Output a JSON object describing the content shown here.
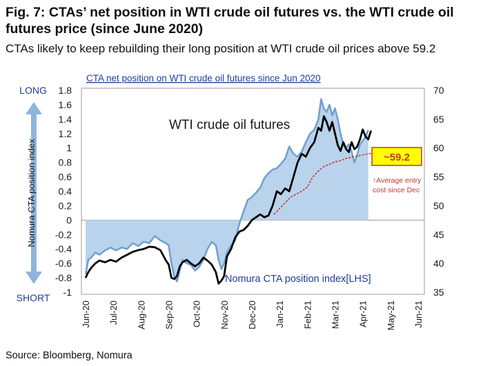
{
  "figure": {
    "title": "Fig. 7: CTAs’ net position in WTI crude oil futures vs. the WTI crude oil futures price (since June 2020)",
    "subtitle": "CTAs likely to keep rebuilding their long position at WTI crude oil prices above 59.2",
    "source": "Source: Bloomberg, Nomura"
  },
  "colors": {
    "cta_fill": "#b9d3ec",
    "cta_line": "#6f9fd0",
    "wti_line": "#000000",
    "avg_entry_line": "#c0392b",
    "arrow": "#8fb4dc",
    "callout_fill": "#ffff00",
    "callout_border": "#c0392b",
    "chart_title_color": "#1f3d99"
  },
  "chart_data": {
    "type": "line",
    "title": "CTA net position on WTI crude oil futures since Jun 2020",
    "left_axis": {
      "label": "Nomura CTA position index",
      "top_label": "LONG",
      "bottom_label": "SHORT",
      "ylim": [
        -1,
        1.8
      ],
      "ticks": [
        1.8,
        1.6,
        1.4,
        1.2,
        1,
        0.8,
        0.6,
        0.4,
        0.2,
        0,
        -0.2,
        -0.4,
        -0.6,
        -0.8,
        -1
      ]
    },
    "right_axis": {
      "ylim": [
        35,
        70
      ],
      "ticks": [
        70,
        65,
        60,
        55,
        50,
        45,
        40,
        35
      ]
    },
    "x_axis": {
      "categories": [
        "Jun-20",
        "Jul-20",
        "Aug-20",
        "Sep-20",
        "Oct-20",
        "Nov-20",
        "Dec-20",
        "Jan-21",
        "Feb-21",
        "Mar-21",
        "Apr-21",
        "May-21",
        "Jun-21"
      ],
      "range": [
        0,
        12
      ]
    },
    "annotations": {
      "wti_label": "WTI crude oil futures",
      "cta_label": "Nomura CTA position index[LHS]",
      "callout": "~59.2",
      "avg_entry_line1": "↑Average entry",
      "avg_entry_line2": "cost since Dec"
    },
    "series": [
      {
        "name": "Nomura CTA position index[LHS]",
        "axis": "left",
        "style": "area",
        "points": [
          [
            0.0,
            -0.75
          ],
          [
            0.1,
            -0.55
          ],
          [
            0.2,
            -0.52
          ],
          [
            0.35,
            -0.45
          ],
          [
            0.5,
            -0.48
          ],
          [
            0.7,
            -0.42
          ],
          [
            0.9,
            -0.38
          ],
          [
            1.1,
            -0.42
          ],
          [
            1.3,
            -0.38
          ],
          [
            1.5,
            -0.4
          ],
          [
            1.7,
            -0.32
          ],
          [
            1.9,
            -0.36
          ],
          [
            2.1,
            -0.3
          ],
          [
            2.3,
            -0.32
          ],
          [
            2.5,
            -0.22
          ],
          [
            2.7,
            -0.28
          ],
          [
            2.9,
            -0.32
          ],
          [
            3.0,
            -0.35
          ],
          [
            3.1,
            -0.6
          ],
          [
            3.2,
            -0.78
          ],
          [
            3.3,
            -0.85
          ],
          [
            3.4,
            -0.7
          ],
          [
            3.5,
            -0.55
          ],
          [
            3.65,
            -0.6
          ],
          [
            3.8,
            -0.62
          ],
          [
            3.95,
            -0.7
          ],
          [
            4.1,
            -0.65
          ],
          [
            4.25,
            -0.55
          ],
          [
            4.4,
            -0.4
          ],
          [
            4.55,
            -0.3
          ],
          [
            4.7,
            -0.35
          ],
          [
            4.8,
            -0.55
          ],
          [
            4.9,
            -0.68
          ],
          [
            5.0,
            -0.6
          ],
          [
            5.1,
            -0.45
          ],
          [
            5.25,
            -0.35
          ],
          [
            5.4,
            -0.28
          ],
          [
            5.55,
            -0.05
          ],
          [
            5.7,
            0.12
          ],
          [
            5.85,
            0.28
          ],
          [
            6.0,
            0.32
          ],
          [
            6.15,
            0.38
          ],
          [
            6.3,
            0.45
          ],
          [
            6.45,
            0.58
          ],
          [
            6.6,
            0.65
          ],
          [
            6.75,
            0.7
          ],
          [
            6.9,
            0.72
          ],
          [
            7.05,
            0.78
          ],
          [
            7.2,
            0.85
          ],
          [
            7.35,
            1.02
          ],
          [
            7.5,
            0.92
          ],
          [
            7.65,
            0.88
          ],
          [
            7.8,
            0.95
          ],
          [
            7.95,
            1.08
          ],
          [
            8.1,
            1.2
          ],
          [
            8.25,
            1.25
          ],
          [
            8.4,
            1.4
          ],
          [
            8.5,
            1.68
          ],
          [
            8.6,
            1.55
          ],
          [
            8.7,
            1.5
          ],
          [
            8.8,
            1.6
          ],
          [
            8.9,
            1.45
          ],
          [
            9.0,
            1.55
          ],
          [
            9.1,
            1.4
          ],
          [
            9.2,
            1.2
          ],
          [
            9.3,
            1.05
          ],
          [
            9.4,
            1.0
          ],
          [
            9.5,
            1.05
          ],
          [
            9.6,
            0.95
          ],
          [
            9.7,
            0.8
          ],
          [
            9.8,
            0.9
          ],
          [
            9.9,
            1.05
          ],
          [
            10.0,
            1.1
          ],
          [
            10.1,
            1.15
          ],
          [
            10.2,
            1.25
          ]
        ]
      },
      {
        "name": "WTI crude oil futures",
        "axis": "right",
        "style": "line",
        "points": [
          [
            0.0,
            37.5
          ],
          [
            0.1,
            38.5
          ],
          [
            0.2,
            39.2
          ],
          [
            0.35,
            40.0
          ],
          [
            0.5,
            40.5
          ],
          [
            0.7,
            40.2
          ],
          [
            0.9,
            40.6
          ],
          [
            1.1,
            40.3
          ],
          [
            1.3,
            41.0
          ],
          [
            1.5,
            41.5
          ],
          [
            1.7,
            42.0
          ],
          [
            1.9,
            42.3
          ],
          [
            2.1,
            42.5
          ],
          [
            2.3,
            42.9
          ],
          [
            2.5,
            42.8
          ],
          [
            2.7,
            42.3
          ],
          [
            2.9,
            40.5
          ],
          [
            3.0,
            39.8
          ],
          [
            3.1,
            37.5
          ],
          [
            3.2,
            37.3
          ],
          [
            3.3,
            37.8
          ],
          [
            3.4,
            39.5
          ],
          [
            3.5,
            40.2
          ],
          [
            3.65,
            40.6
          ],
          [
            3.8,
            40.0
          ],
          [
            3.95,
            39.5
          ],
          [
            4.1,
            40.0
          ],
          [
            4.25,
            41.0
          ],
          [
            4.4,
            40.5
          ],
          [
            4.55,
            39.8
          ],
          [
            4.7,
            38.5
          ],
          [
            4.8,
            36.5
          ],
          [
            4.9,
            37.0
          ],
          [
            5.0,
            37.8
          ],
          [
            5.1,
            41.2
          ],
          [
            5.25,
            42.5
          ],
          [
            5.4,
            44.5
          ],
          [
            5.55,
            45.5
          ],
          [
            5.7,
            45.8
          ],
          [
            5.85,
            46.5
          ],
          [
            6.0,
            47.5
          ],
          [
            6.15,
            48.0
          ],
          [
            6.3,
            48.5
          ],
          [
            6.45,
            48.0
          ],
          [
            6.6,
            48.3
          ],
          [
            6.75,
            50.0
          ],
          [
            6.9,
            52.5
          ],
          [
            7.05,
            52.0
          ],
          [
            7.2,
            53.0
          ],
          [
            7.35,
            52.5
          ],
          [
            7.5,
            55.0
          ],
          [
            7.65,
            57.5
          ],
          [
            7.8,
            59.0
          ],
          [
            7.95,
            58.5
          ],
          [
            8.1,
            60.0
          ],
          [
            8.25,
            61.0
          ],
          [
            8.4,
            63.5
          ],
          [
            8.5,
            63.0
          ],
          [
            8.6,
            65.5
          ],
          [
            8.7,
            64.5
          ],
          [
            8.8,
            63.0
          ],
          [
            8.9,
            64.5
          ],
          [
            9.0,
            62.5
          ],
          [
            9.1,
            60.5
          ],
          [
            9.2,
            59.5
          ],
          [
            9.3,
            61.0
          ],
          [
            9.4,
            59.8
          ],
          [
            9.5,
            59.3
          ],
          [
            9.6,
            61.0
          ],
          [
            9.7,
            59.8
          ],
          [
            9.8,
            60.2
          ],
          [
            9.9,
            61.5
          ],
          [
            10.0,
            63.2
          ],
          [
            10.1,
            62.0
          ],
          [
            10.2,
            61.5
          ],
          [
            10.3,
            63.0
          ]
        ]
      },
      {
        "name": "Average entry cost since Dec",
        "axis": "right",
        "style": "dashed",
        "points": [
          [
            6.8,
            48.5
          ],
          [
            7.0,
            49.5
          ],
          [
            7.2,
            50.5
          ],
          [
            7.4,
            51.5
          ],
          [
            7.6,
            52.0
          ],
          [
            7.8,
            52.5
          ],
          [
            8.0,
            53.2
          ],
          [
            8.2,
            55.0
          ],
          [
            8.4,
            56.0
          ],
          [
            8.6,
            56.8
          ],
          [
            8.8,
            57.2
          ],
          [
            9.0,
            57.6
          ],
          [
            9.2,
            57.8
          ],
          [
            9.4,
            58.2
          ],
          [
            9.6,
            58.4
          ],
          [
            9.8,
            58.6
          ],
          [
            10.0,
            58.8
          ],
          [
            10.2,
            59.0
          ],
          [
            10.5,
            59.2
          ]
        ]
      }
    ]
  }
}
